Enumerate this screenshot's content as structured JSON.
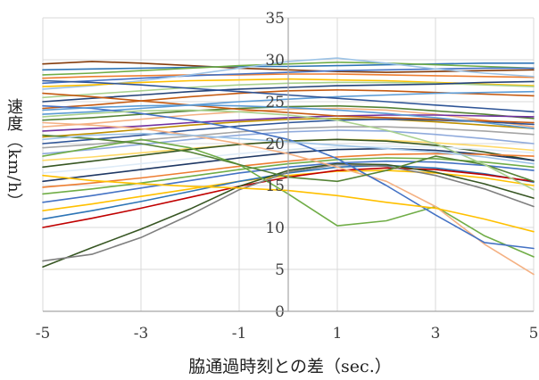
{
  "chart_data": {
    "type": "line",
    "xlabel": "脇通過時刻との差（sec.）",
    "ylabel": "速度（km/h）",
    "xlim": [
      -5,
      5
    ],
    "ylim": [
      0,
      35
    ],
    "x_ticks": [
      -5,
      -3,
      -1,
      1,
      3,
      5
    ],
    "y_ticks": [
      0,
      5,
      10,
      15,
      20,
      25,
      30,
      35
    ],
    "grid": true,
    "x": [
      -5,
      -4,
      -3,
      -2,
      -1,
      0,
      1,
      2,
      3,
      4,
      5
    ],
    "series": [
      {
        "color": "#843C0C",
        "values": [
          29.5,
          29.8,
          29.6,
          29.3,
          29.0,
          28.8,
          28.6,
          28.5,
          28.6,
          28.7,
          28.8
        ]
      },
      {
        "color": "#2E75B6",
        "values": [
          28.8,
          28.9,
          29.0,
          29.1,
          29.2,
          29.2,
          29.3,
          29.4,
          29.5,
          29.6,
          29.6
        ]
      },
      {
        "color": "#70AD47",
        "values": [
          28.2,
          28.4,
          28.7,
          29.0,
          29.3,
          29.5,
          29.7,
          29.6,
          29.4,
          29.2,
          29.0
        ]
      },
      {
        "color": "#ED7D31",
        "values": [
          27.8,
          28.0,
          28.1,
          28.2,
          28.2,
          28.3,
          28.3,
          28.2,
          28.1,
          28.0,
          27.9
        ]
      },
      {
        "color": "#4472C4",
        "values": [
          27.2,
          27.5,
          27.8,
          28.1,
          28.3,
          28.5,
          28.7,
          28.8,
          28.9,
          29.0,
          29.0
        ]
      },
      {
        "color": "#9DC3E6",
        "values": [
          26.5,
          26.9,
          27.5,
          28.2,
          29.0,
          29.8,
          30.2,
          29.6,
          28.9,
          28.4,
          28.0
        ]
      },
      {
        "color": "#FFC000",
        "values": [
          26.8,
          27.0,
          27.3,
          27.5,
          27.6,
          27.7,
          27.6,
          27.5,
          27.3,
          27.1,
          26.9
        ]
      },
      {
        "color": "#A9D18E",
        "values": [
          25.5,
          25.9,
          26.3,
          26.7,
          27.0,
          27.2,
          27.3,
          27.3,
          27.2,
          27.0,
          26.8
        ]
      },
      {
        "color": "#264478",
        "values": [
          25.0,
          25.4,
          25.8,
          26.2,
          26.5,
          26.7,
          26.9,
          27.0,
          27.1,
          27.3,
          27.4
        ]
      },
      {
        "color": "#C55A11",
        "values": [
          24.2,
          24.6,
          25.1,
          25.6,
          26.0,
          26.3,
          26.4,
          26.3,
          26.1,
          25.9,
          25.7
        ]
      },
      {
        "color": "#5B9BD5",
        "values": [
          23.5,
          23.8,
          24.2,
          24.6,
          25.0,
          25.3,
          25.6,
          25.8,
          26.0,
          26.1,
          26.2
        ]
      },
      {
        "color": "#548235",
        "values": [
          22.8,
          23.1,
          23.5,
          23.9,
          24.2,
          24.4,
          24.5,
          24.3,
          23.9,
          23.5,
          23.0
        ]
      },
      {
        "color": "#F4B183",
        "values": [
          22.0,
          22.4,
          22.9,
          23.4,
          23.8,
          24.1,
          24.2,
          24.0,
          23.5,
          22.8,
          22.0
        ]
      },
      {
        "color": "#7030A0",
        "values": [
          21.5,
          21.8,
          22.1,
          22.5,
          22.8,
          23.1,
          23.3,
          23.4,
          23.4,
          23.3,
          23.2
        ]
      },
      {
        "color": "#BF9000",
        "values": [
          20.8,
          21.2,
          21.7,
          22.2,
          22.6,
          22.9,
          23.0,
          22.9,
          22.6,
          22.2,
          21.8
        ]
      },
      {
        "color": "#2F5597",
        "values": [
          20.0,
          20.5,
          21.0,
          21.6,
          22.1,
          22.5,
          22.8,
          22.9,
          22.8,
          22.6,
          22.3
        ]
      },
      {
        "color": "#A5A5A5",
        "values": [
          19.5,
          19.9,
          20.4,
          20.9,
          21.4,
          21.8,
          22.0,
          22.0,
          21.8,
          21.5,
          21.1
        ]
      },
      {
        "color": "#8FAADC",
        "values": [
          18.8,
          19.3,
          19.9,
          20.5,
          21.0,
          21.4,
          21.6,
          21.5,
          21.1,
          20.6,
          20.0
        ]
      },
      {
        "color": "#FFD966",
        "values": [
          18.0,
          18.4,
          18.9,
          19.4,
          19.9,
          20.3,
          20.5,
          20.4,
          20.1,
          19.7,
          19.2
        ]
      },
      {
        "color": "#385723",
        "values": [
          17.2,
          17.9,
          18.6,
          19.3,
          19.9,
          20.3,
          20.5,
          20.3,
          19.8,
          19.0,
          18.0
        ]
      },
      {
        "color": "#DEEBF7",
        "values": [
          16.5,
          17.0,
          17.6,
          18.2,
          18.8,
          19.3,
          19.6,
          19.7,
          19.6,
          19.3,
          18.9
        ]
      },
      {
        "color": "#1F3864",
        "values": [
          15.5,
          16.2,
          16.9,
          17.6,
          18.3,
          18.9,
          19.3,
          19.4,
          19.2,
          18.7,
          18.0
        ]
      },
      {
        "color": "#ED7D31",
        "values": [
          14.8,
          15.3,
          15.9,
          16.6,
          17.3,
          17.9,
          18.4,
          18.7,
          18.8,
          18.7,
          18.5
        ]
      },
      {
        "color": "#70AD47",
        "values": [
          14.0,
          14.6,
          15.3,
          16.1,
          16.9,
          17.6,
          18.1,
          18.3,
          18.2,
          17.8,
          17.2
        ]
      },
      {
        "color": "#4472C4",
        "values": [
          13.0,
          13.8,
          14.7,
          15.6,
          16.5,
          17.2,
          17.7,
          17.9,
          17.8,
          17.4,
          16.8
        ]
      },
      {
        "color": "#FFC000",
        "values": [
          12.0,
          12.8,
          13.7,
          14.6,
          15.5,
          16.2,
          16.7,
          16.8,
          16.5,
          15.9,
          15.0
        ]
      },
      {
        "color": "#2E75B6",
        "values": [
          11.0,
          12.0,
          13.1,
          14.3,
          15.5,
          16.5,
          17.2,
          17.4,
          17.1,
          16.4,
          15.4
        ]
      },
      {
        "color": "#C00000",
        "values": [
          10.0,
          11.1,
          12.3,
          13.6,
          14.9,
          16.0,
          16.8,
          17.1,
          16.9,
          16.3,
          15.5
        ]
      },
      {
        "color": "#375623",
        "values": [
          5.3,
          7.6,
          9.8,
          12.2,
          14.9,
          16.8,
          17.6,
          17.5,
          16.6,
          15.2,
          13.5
        ]
      },
      {
        "color": "#7F7F7F",
        "values": [
          6.0,
          6.8,
          8.8,
          11.5,
          14.5,
          16.6,
          17.5,
          17.3,
          16.2,
          14.6,
          12.5
        ]
      },
      {
        "color": "#70AD47",
        "values": [
          18.5,
          19.5,
          20.5,
          19.5,
          17.5,
          14.0,
          10.2,
          10.8,
          12.5,
          9.0,
          6.5
        ]
      },
      {
        "color": "#F4B183",
        "values": [
          22.5,
          22.2,
          21.8,
          21.0,
          20.0,
          18.8,
          17.2,
          15.5,
          12.5,
          8.0,
          4.4
        ]
      },
      {
        "color": "#4472C4",
        "values": [
          24.5,
          24.2,
          23.6,
          22.8,
          21.8,
          20.5,
          18.2,
          15.0,
          11.5,
          8.2,
          7.5
        ]
      },
      {
        "color": "#FFC000",
        "values": [
          16.2,
          15.6,
          15.2,
          14.9,
          14.7,
          14.4,
          13.8,
          13.0,
          12.3,
          11.0,
          9.5
        ]
      },
      {
        "color": "#548235",
        "values": [
          21.0,
          20.6,
          20.0,
          19.0,
          17.5,
          16.0,
          15.5,
          16.8,
          18.5,
          17.5,
          15.5
        ]
      },
      {
        "color": "#A9D18E",
        "values": [
          23.2,
          23.6,
          23.9,
          24.0,
          23.8,
          23.4,
          22.8,
          21.6,
          20.0,
          17.5,
          14.5
        ]
      },
      {
        "color": "#9DC3E6",
        "values": [
          20.5,
          21.0,
          21.2,
          21.0,
          20.6,
          20.2,
          19.8,
          19.4,
          19.0,
          18.4,
          17.6
        ]
      },
      {
        "color": "#C55A11",
        "values": [
          26.0,
          25.6,
          25.1,
          24.6,
          24.1,
          23.7,
          23.3,
          23.1,
          22.9,
          22.7,
          22.5
        ]
      },
      {
        "color": "#5B9BD5",
        "values": [
          24.0,
          24.3,
          24.5,
          24.6,
          24.5,
          24.3,
          24.0,
          23.6,
          23.1,
          22.5,
          21.8
        ]
      },
      {
        "color": "#2F5597",
        "values": [
          27.5,
          27.3,
          27.0,
          26.6,
          26.2,
          25.8,
          25.4,
          25.0,
          24.6,
          24.2,
          23.8
        ]
      }
    ]
  }
}
